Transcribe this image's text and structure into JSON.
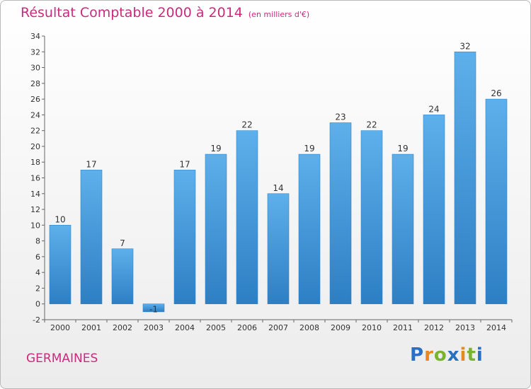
{
  "chart_data": {
    "type": "bar",
    "title": "Résultat Comptable 2000 à 2014",
    "subtitle": "(en milliers d'€)",
    "categories": [
      "2000",
      "2001",
      "2002",
      "2003",
      "2004",
      "2005",
      "2006",
      "2007",
      "2008",
      "2009",
      "2010",
      "2011",
      "2012",
      "2013",
      "2014"
    ],
    "values": [
      10,
      17,
      7,
      -1,
      17,
      19,
      22,
      14,
      19,
      23,
      22,
      19,
      24,
      32,
      26
    ],
    "ylim": [
      -2,
      34
    ],
    "ytick_step": 2,
    "grid": false,
    "bar_color": "#4a9be0"
  },
  "commune": "GERMAINES",
  "logo": {
    "text": "Proxiti",
    "letter_colors": [
      "#2a6fc1",
      "#e58a1b",
      "#7ab32e",
      "#2a6fc1",
      "#e58a1b",
      "#7ab32e",
      "#2a6fc1"
    ]
  }
}
